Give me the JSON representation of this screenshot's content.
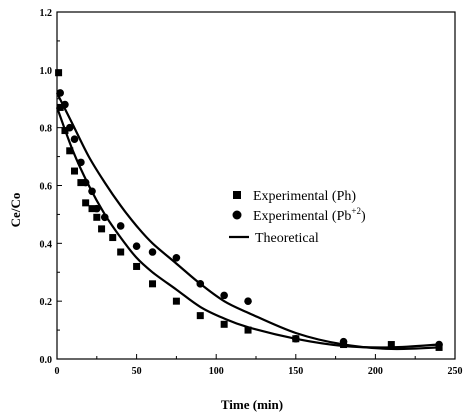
{
  "chart_data": {
    "type": "scatter",
    "xlabel": "Time (min)",
    "ylabel": "Ce/Co",
    "xlim": [
      0,
      250
    ],
    "ylim": [
      0,
      1.2
    ],
    "xticks": [
      "0",
      "50",
      "100",
      "150",
      "200",
      "250"
    ],
    "yticks": [
      "0.0",
      "0.2",
      "0.4",
      "0.6",
      "0.8",
      "1.0",
      "1.2"
    ],
    "grid": false,
    "legend_position": "right",
    "legend": [
      {
        "label": "Experimental (Ph)",
        "marker": "square"
      },
      {
        "label": "Experimental (Pb",
        "sup": "+2",
        "suffix": ")",
        "marker": "circle"
      },
      {
        "label": "Theoretical",
        "marker": "line"
      }
    ],
    "series": [
      {
        "marker": "square",
        "points": [
          [
            1,
            0.99
          ],
          [
            2,
            0.87
          ],
          [
            5,
            0.79
          ],
          [
            8,
            0.72
          ],
          [
            11,
            0.65
          ],
          [
            15,
            0.61
          ],
          [
            18,
            0.54
          ],
          [
            22,
            0.52
          ],
          [
            25,
            0.49
          ],
          [
            28,
            0.45
          ],
          [
            35,
            0.42
          ],
          [
            40,
            0.37
          ],
          [
            50,
            0.32
          ],
          [
            60,
            0.26
          ],
          [
            75,
            0.2
          ],
          [
            90,
            0.15
          ],
          [
            105,
            0.12
          ],
          [
            120,
            0.1
          ],
          [
            150,
            0.07
          ],
          [
            180,
            0.05
          ],
          [
            210,
            0.05
          ],
          [
            240,
            0.04
          ]
        ]
      },
      {
        "marker": "circle",
        "points": [
          [
            2,
            0.92
          ],
          [
            5,
            0.88
          ],
          [
            8,
            0.8
          ],
          [
            11,
            0.76
          ],
          [
            15,
            0.68
          ],
          [
            18,
            0.61
          ],
          [
            22,
            0.58
          ],
          [
            25,
            0.52
          ],
          [
            30,
            0.49
          ],
          [
            40,
            0.46
          ],
          [
            50,
            0.39
          ],
          [
            60,
            0.37
          ],
          [
            75,
            0.35
          ],
          [
            90,
            0.26
          ],
          [
            105,
            0.22
          ],
          [
            120,
            0.2
          ],
          [
            150,
            0.07
          ],
          [
            180,
            0.06
          ],
          [
            240,
            0.05
          ]
        ]
      },
      {
        "type": "line",
        "points": [
          [
            0,
            0.87
          ],
          [
            10,
            0.72
          ],
          [
            20,
            0.6
          ],
          [
            30,
            0.5
          ],
          [
            40,
            0.42
          ],
          [
            50,
            0.35
          ],
          [
            60,
            0.3
          ],
          [
            75,
            0.24
          ],
          [
            90,
            0.18
          ],
          [
            105,
            0.14
          ],
          [
            120,
            0.11
          ],
          [
            150,
            0.07
          ],
          [
            180,
            0.045
          ],
          [
            210,
            0.04
          ],
          [
            240,
            0.05
          ]
        ]
      },
      {
        "type": "line",
        "points": [
          [
            0,
            0.92
          ],
          [
            10,
            0.81
          ],
          [
            20,
            0.7
          ],
          [
            30,
            0.61
          ],
          [
            40,
            0.53
          ],
          [
            50,
            0.46
          ],
          [
            60,
            0.4
          ],
          [
            75,
            0.33
          ],
          [
            90,
            0.26
          ],
          [
            105,
            0.2
          ],
          [
            120,
            0.16
          ],
          [
            150,
            0.09
          ],
          [
            180,
            0.05
          ],
          [
            210,
            0.035
          ],
          [
            240,
            0.04
          ]
        ]
      }
    ]
  }
}
